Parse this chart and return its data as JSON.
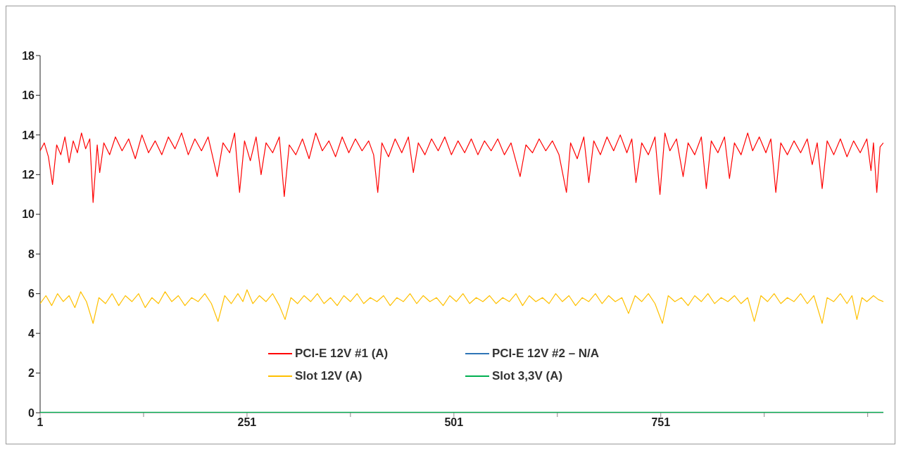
{
  "chart_data": {
    "type": "line",
    "xlim": [
      1,
      1020
    ],
    "xticks": [
      1,
      {
        "value": 126,
        "label": null
      },
      251,
      {
        "value": 376,
        "label": null
      },
      501,
      {
        "value": 626,
        "label": null
      },
      751,
      {
        "value": 876,
        "label": null
      },
      {
        "value": 1001,
        "label": null
      }
    ],
    "ylim": [
      0,
      18
    ],
    "yticks": [
      0,
      2,
      4,
      6,
      8,
      10,
      12,
      14,
      16,
      18
    ],
    "grid": false,
    "legend": "bottom",
    "marker": "none",
    "line_style": "solid",
    "series": [
      {
        "name": "PCI-E 12V #1 (A)",
        "color": "#ff0000",
        "x": [
          1,
          6,
          11,
          16,
          21,
          26,
          31,
          36,
          41,
          46,
          51,
          56,
          61,
          65,
          70,
          73,
          78,
          85,
          92,
          100,
          108,
          116,
          124,
          132,
          140,
          148,
          156,
          164,
          172,
          180,
          188,
          196,
          204,
          215,
          222,
          230,
          236,
          242,
          248,
          255,
          262,
          268,
          274,
          282,
          290,
          296,
          302,
          310,
          318,
          326,
          334,
          342,
          350,
          358,
          366,
          374,
          382,
          390,
          398,
          404,
          409,
          414,
          422,
          430,
          438,
          446,
          452,
          458,
          466,
          474,
          482,
          490,
          498,
          506,
          514,
          522,
          530,
          538,
          546,
          554,
          562,
          570,
          581,
          588,
          596,
          604,
          612,
          620,
          628,
          637,
          642,
          650,
          658,
          664,
          670,
          678,
          686,
          694,
          702,
          710,
          716,
          721,
          728,
          736,
          744,
          750,
          756,
          762,
          770,
          778,
          784,
          792,
          800,
          806,
          812,
          820,
          828,
          834,
          840,
          848,
          856,
          862,
          870,
          878,
          884,
          890,
          896,
          904,
          912,
          920,
          928,
          934,
          940,
          946,
          952,
          960,
          968,
          976,
          984,
          992,
          1000,
          1005,
          1008,
          1012,
          1016,
          1020
        ],
        "values": [
          13.2,
          13.6,
          12.9,
          11.5,
          13.5,
          13.0,
          13.9,
          12.6,
          13.7,
          13.1,
          14.1,
          13.3,
          13.8,
          10.6,
          13.5,
          12.1,
          13.6,
          13.0,
          13.9,
          13.2,
          13.8,
          12.8,
          14.0,
          13.1,
          13.7,
          13.0,
          13.9,
          13.3,
          14.1,
          13.0,
          13.8,
          13.2,
          13.9,
          11.9,
          13.6,
          13.1,
          14.1,
          11.1,
          13.7,
          12.7,
          13.9,
          12.0,
          13.6,
          13.1,
          13.9,
          10.9,
          13.5,
          13.0,
          13.8,
          12.8,
          14.1,
          13.2,
          13.7,
          12.9,
          13.9,
          13.1,
          13.8,
          13.2,
          13.7,
          13.0,
          11.1,
          13.6,
          12.9,
          13.8,
          13.1,
          13.9,
          12.1,
          13.6,
          13.0,
          13.8,
          13.2,
          13.9,
          13.0,
          13.7,
          13.1,
          13.8,
          13.0,
          13.7,
          13.2,
          13.8,
          13.0,
          13.6,
          11.9,
          13.5,
          13.1,
          13.8,
          13.2,
          13.7,
          13.0,
          11.1,
          13.6,
          12.8,
          13.9,
          11.6,
          13.7,
          13.0,
          13.9,
          13.2,
          14.0,
          13.1,
          13.8,
          11.6,
          13.6,
          13.0,
          13.9,
          11.0,
          14.1,
          13.2,
          13.8,
          11.9,
          13.6,
          13.0,
          13.9,
          11.3,
          13.7,
          13.1,
          13.9,
          11.8,
          13.6,
          13.0,
          14.1,
          13.2,
          13.9,
          13.1,
          13.8,
          11.1,
          13.6,
          13.0,
          13.7,
          13.1,
          13.8,
          12.5,
          13.6,
          11.3,
          13.7,
          13.0,
          13.8,
          12.9,
          13.7,
          13.1,
          13.8,
          12.2,
          13.6,
          11.1,
          13.4,
          13.6
        ]
      },
      {
        "name": "PCI-E 12V #2 – N/A",
        "color": "#2e75b6"
      },
      {
        "name": "Slot 12V (A)",
        "color": "#ffc000",
        "x": [
          1,
          8,
          15,
          22,
          29,
          36,
          43,
          50,
          57,
          65,
          72,
          80,
          88,
          96,
          104,
          112,
          120,
          128,
          136,
          144,
          152,
          160,
          168,
          176,
          184,
          192,
          200,
          208,
          216,
          224,
          232,
          240,
          246,
          251,
          258,
          266,
          274,
          282,
          290,
          297,
          304,
          312,
          320,
          328,
          336,
          344,
          352,
          360,
          368,
          376,
          384,
          392,
          400,
          408,
          416,
          424,
          432,
          440,
          448,
          456,
          464,
          472,
          480,
          488,
          496,
          504,
          512,
          520,
          528,
          536,
          544,
          552,
          560,
          568,
          576,
          584,
          592,
          600,
          608,
          616,
          624,
          632,
          640,
          648,
          656,
          664,
          672,
          680,
          688,
          696,
          704,
          712,
          720,
          728,
          736,
          744,
          753,
          760,
          768,
          776,
          784,
          792,
          800,
          808,
          816,
          824,
          832,
          840,
          848,
          856,
          864,
          872,
          880,
          888,
          896,
          904,
          912,
          920,
          928,
          936,
          946,
          952,
          960,
          968,
          976,
          982,
          988,
          994,
          1000,
          1008,
          1014,
          1020
        ],
        "values": [
          5.5,
          5.9,
          5.4,
          6.0,
          5.6,
          5.9,
          5.3,
          6.1,
          5.6,
          4.5,
          5.8,
          5.5,
          6.0,
          5.4,
          5.9,
          5.6,
          6.0,
          5.3,
          5.8,
          5.5,
          6.1,
          5.6,
          5.9,
          5.4,
          5.8,
          5.6,
          6.0,
          5.5,
          4.6,
          5.9,
          5.5,
          6.0,
          5.6,
          6.2,
          5.5,
          5.9,
          5.6,
          6.0,
          5.4,
          4.7,
          5.8,
          5.5,
          5.9,
          5.6,
          6.0,
          5.5,
          5.8,
          5.4,
          5.9,
          5.6,
          6.0,
          5.5,
          5.8,
          5.6,
          5.9,
          5.4,
          5.8,
          5.6,
          6.0,
          5.5,
          5.9,
          5.6,
          5.8,
          5.4,
          5.9,
          5.6,
          6.0,
          5.5,
          5.8,
          5.6,
          5.9,
          5.5,
          5.8,
          5.6,
          6.0,
          5.4,
          5.9,
          5.6,
          5.8,
          5.5,
          6.0,
          5.6,
          5.9,
          5.4,
          5.8,
          5.6,
          6.0,
          5.5,
          5.9,
          5.6,
          5.8,
          5.0,
          5.9,
          5.6,
          6.0,
          5.5,
          4.5,
          5.9,
          5.6,
          5.8,
          5.4,
          5.9,
          5.6,
          6.0,
          5.5,
          5.8,
          5.6,
          5.9,
          5.5,
          5.8,
          4.6,
          5.9,
          5.6,
          6.0,
          5.5,
          5.8,
          5.6,
          6.0,
          5.5,
          5.9,
          4.5,
          5.8,
          5.6,
          6.0,
          5.5,
          5.9,
          4.7,
          5.8,
          5.6,
          5.9,
          5.7,
          5.6
        ]
      },
      {
        "name": "Slot 3,3V (A)",
        "color": "#00b050",
        "x": [
          1,
          250,
          500,
          750,
          1020
        ],
        "values": [
          0,
          0,
          0,
          0,
          0
        ]
      }
    ]
  }
}
